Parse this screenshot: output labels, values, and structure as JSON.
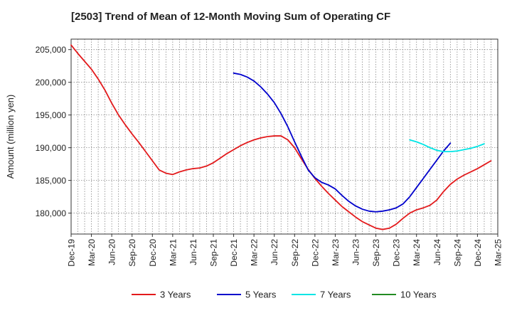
{
  "chart_data": {
    "type": "line",
    "title": "[2503]  Trend of Mean of 12-Month Moving Sum of Operating CF",
    "xlabel": "",
    "ylabel": "Amount (million yen)",
    "ylim": [
      176800,
      206600
    ],
    "yticks": [
      180000,
      185000,
      190000,
      195000,
      200000,
      205000
    ],
    "ytick_labels": [
      "180,000",
      "185,000",
      "190,000",
      "195,000",
      "200,000",
      "205,000"
    ],
    "x_start": "Dec-19",
    "x_months": 63,
    "xtick_labels": [
      "Dec-19",
      "Mar-20",
      "Jun-20",
      "Sep-20",
      "Dec-20",
      "Mar-21",
      "Jun-21",
      "Sep-21",
      "Dec-21",
      "Mar-22",
      "Jun-22",
      "Sep-22",
      "Dec-22",
      "Mar-23",
      "Jun-23",
      "Sep-23",
      "Dec-23",
      "Mar-24",
      "Jun-24",
      "Sep-24",
      "Dec-24",
      "Mar-25"
    ],
    "grid": true,
    "legend_position": "bottom",
    "series": [
      {
        "name": "3 Years",
        "color": "#e31a1c",
        "start_index": 0,
        "values": [
          205700,
          204400,
          203200,
          202000,
          200500,
          198800,
          196800,
          195000,
          193500,
          192100,
          190800,
          189400,
          188000,
          186600,
          186100,
          185900,
          186300,
          186600,
          186800,
          186900,
          187200,
          187700,
          188400,
          189100,
          189700,
          190300,
          190800,
          191200,
          191500,
          191700,
          191800,
          191800,
          191200,
          190000,
          188300,
          186700,
          185300,
          184100,
          183000,
          182000,
          181000,
          180200,
          179400,
          178700,
          178200,
          177700,
          177500,
          177700,
          178300,
          179200,
          180000,
          180500,
          180800,
          181200,
          182000,
          183300,
          184400,
          185200,
          185800,
          186300,
          186800,
          187400,
          188000
        ]
      },
      {
        "name": "5 Years",
        "color": "#0000cc",
        "start_index": 24,
        "values": [
          201400,
          201200,
          200800,
          200200,
          199300,
          198200,
          196900,
          195200,
          193200,
          190900,
          188700,
          186600,
          185400,
          184700,
          184300,
          183700,
          182700,
          181800,
          181100,
          180600,
          180300,
          180200,
          180300,
          180500,
          180800,
          181400,
          182500,
          183900,
          185300,
          186700,
          188100,
          189500,
          190700
        ]
      },
      {
        "name": "7 Years",
        "color": "#00e5e5",
        "start_index": 50,
        "values": [
          191200,
          190900,
          190500,
          190000,
          189600,
          189400,
          189400,
          189500,
          189700,
          189900,
          190200,
          190600
        ]
      },
      {
        "name": "10 Years",
        "color": "#228b22",
        "start_index": 0,
        "values": []
      }
    ]
  }
}
